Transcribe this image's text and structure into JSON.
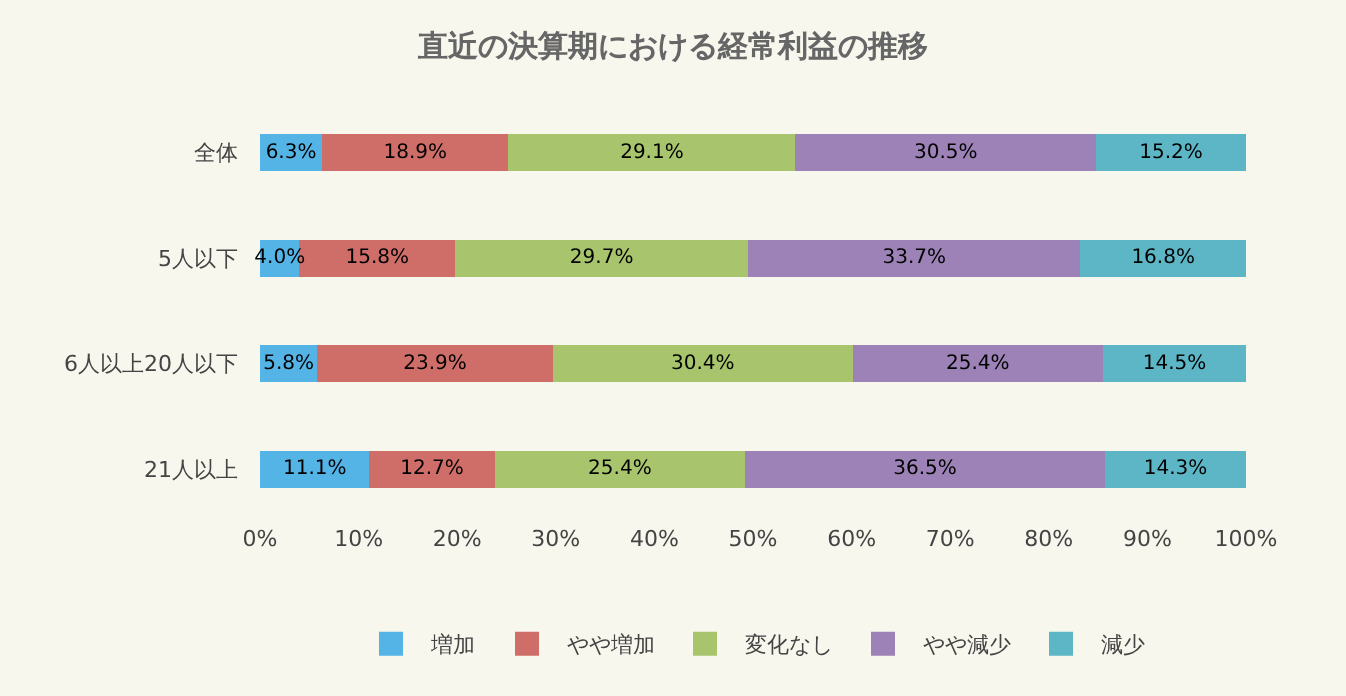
{
  "chart_data": {
    "type": "bar",
    "orientation": "horizontal",
    "stacked": true,
    "title": "直近の決算期における経常利益の推移",
    "categories": [
      "全体",
      "5人以下",
      "6人以上20人以下",
      "21人以上"
    ],
    "series": [
      {
        "name": "増加",
        "color": "#55b4e6",
        "values": [
          6.3,
          4.0,
          5.8,
          11.1
        ],
        "value_labels": [
          "6.3%",
          "4.0%",
          "5.8%",
          "11.1%"
        ]
      },
      {
        "name": "やや増加",
        "color": "#cf6e68",
        "values": [
          18.9,
          15.8,
          23.9,
          12.7
        ],
        "value_labels": [
          "18.9%",
          "15.8%",
          "23.9%",
          "12.7%"
        ]
      },
      {
        "name": "変化なし",
        "color": "#a8c46c",
        "values": [
          29.1,
          29.7,
          30.4,
          25.4
        ],
        "value_labels": [
          "29.1%",
          "29.7%",
          "30.4%",
          "25.4%"
        ]
      },
      {
        "name": "やや減少",
        "color": "#9c82b6",
        "values": [
          30.5,
          33.7,
          25.4,
          36.5
        ],
        "value_labels": [
          "30.5%",
          "33.7%",
          "25.4%",
          "36.5%"
        ]
      },
      {
        "name": "減少",
        "color": "#5db6c6",
        "values": [
          15.2,
          16.8,
          14.5,
          14.3
        ],
        "value_labels": [
          "15.2%",
          "16.8%",
          "14.5%",
          "14.3%"
        ]
      }
    ],
    "xlim": [
      0,
      100
    ],
    "xticks": [
      {
        "value": 0,
        "label": "0%"
      },
      {
        "value": 10,
        "label": "10%"
      },
      {
        "value": 20,
        "label": "20%"
      },
      {
        "value": 30,
        "label": "30%"
      },
      {
        "value": 40,
        "label": "40%"
      },
      {
        "value": 50,
        "label": "50%"
      },
      {
        "value": 60,
        "label": "60%"
      },
      {
        "value": 70,
        "label": "70%"
      },
      {
        "value": 80,
        "label": "80%"
      },
      {
        "value": 90,
        "label": "90%"
      },
      {
        "value": 100,
        "label": "100%"
      }
    ],
    "legend": "bottom",
    "grid": false
  }
}
